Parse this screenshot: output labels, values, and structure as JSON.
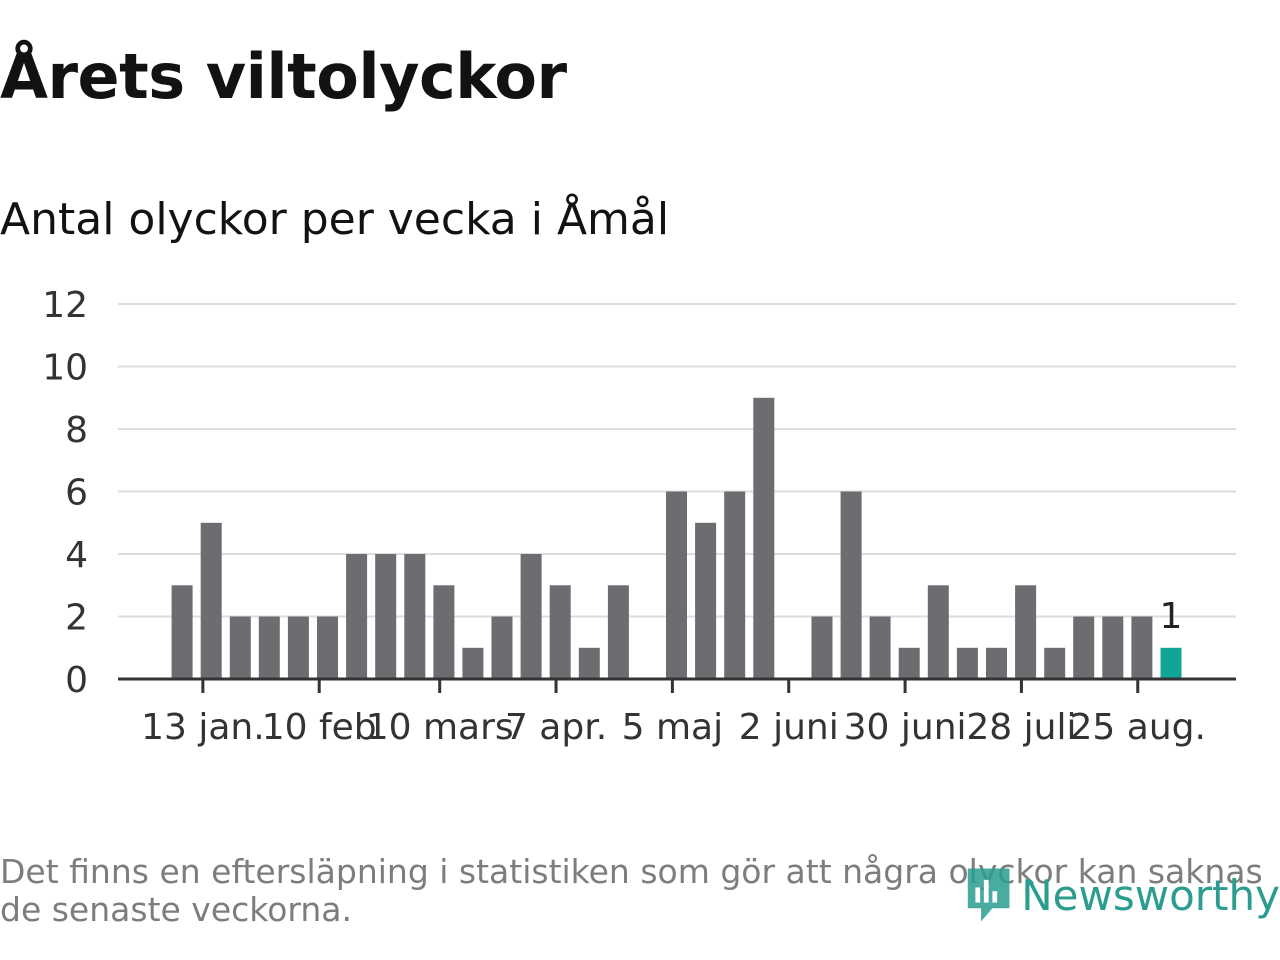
{
  "title": "Årets viltolyckor",
  "subtitle": "Antal olyckor per vecka i Åmål",
  "footnote": "Det finns en eftersläpning i statistiken som gör att några olyckor kan saknas de senaste veckorna.",
  "logo": {
    "text": "Newsworthy",
    "icon": "newsworthy-logo-icon",
    "color": "#2a9d8f"
  },
  "colors": {
    "bar": "#6d6c71",
    "highlight": "#10a594",
    "grid": "#dddddd",
    "axis": "#333333",
    "text": "#333333"
  },
  "chart_data": {
    "type": "bar",
    "title": "Antal olyckor per vecka i Åmål",
    "xlabel": "",
    "ylabel": "",
    "ylim": [
      0,
      12
    ],
    "yticks": [
      0,
      2,
      4,
      6,
      8,
      10,
      12
    ],
    "grid": true,
    "x_start": "2024-01-01",
    "x_end": "2024-09-02",
    "xticks": [
      {
        "date": "2024-01-13",
        "label": "13 jan."
      },
      {
        "date": "2024-02-10",
        "label": "10 feb"
      },
      {
        "date": "2024-03-10",
        "label": "10 mars"
      },
      {
        "date": "2024-04-07",
        "label": "7 apr."
      },
      {
        "date": "2024-05-05",
        "label": "5 maj"
      },
      {
        "date": "2024-06-02",
        "label": "2 juni"
      },
      {
        "date": "2024-06-30",
        "label": "30 juni"
      },
      {
        "date": "2024-07-28",
        "label": "28 juli"
      },
      {
        "date": "2024-08-25",
        "label": "25 aug."
      }
    ],
    "weeks": [
      {
        "date": "2024-01-08",
        "value": 3
      },
      {
        "date": "2024-01-15",
        "value": 5
      },
      {
        "date": "2024-01-22",
        "value": 2
      },
      {
        "date": "2024-01-29",
        "value": 2
      },
      {
        "date": "2024-02-05",
        "value": 2
      },
      {
        "date": "2024-02-12",
        "value": 2
      },
      {
        "date": "2024-02-19",
        "value": 4
      },
      {
        "date": "2024-02-26",
        "value": 4
      },
      {
        "date": "2024-03-04",
        "value": 4
      },
      {
        "date": "2024-03-11",
        "value": 3
      },
      {
        "date": "2024-03-18",
        "value": 1
      },
      {
        "date": "2024-03-25",
        "value": 2
      },
      {
        "date": "2024-04-01",
        "value": 4
      },
      {
        "date": "2024-04-08",
        "value": 3
      },
      {
        "date": "2024-04-15",
        "value": 1
      },
      {
        "date": "2024-04-22",
        "value": 3
      },
      {
        "date": "2024-04-29",
        "value": 0
      },
      {
        "date": "2024-05-06",
        "value": 6
      },
      {
        "date": "2024-05-13",
        "value": 5
      },
      {
        "date": "2024-05-20",
        "value": 6
      },
      {
        "date": "2024-05-27",
        "value": 9
      },
      {
        "date": "2024-06-03",
        "value": 0
      },
      {
        "date": "2024-06-10",
        "value": 2
      },
      {
        "date": "2024-06-17",
        "value": 6
      },
      {
        "date": "2024-06-24",
        "value": 2
      },
      {
        "date": "2024-07-01",
        "value": 1
      },
      {
        "date": "2024-07-08",
        "value": 3
      },
      {
        "date": "2024-07-15",
        "value": 1
      },
      {
        "date": "2024-07-22",
        "value": 1
      },
      {
        "date": "2024-07-29",
        "value": 3
      },
      {
        "date": "2024-08-05",
        "value": 1
      },
      {
        "date": "2024-08-12",
        "value": 2
      },
      {
        "date": "2024-08-19",
        "value": 2
      },
      {
        "date": "2024-08-26",
        "value": 2
      },
      {
        "date": "2024-09-02",
        "value": 1,
        "highlight": true,
        "label": "1"
      }
    ]
  }
}
